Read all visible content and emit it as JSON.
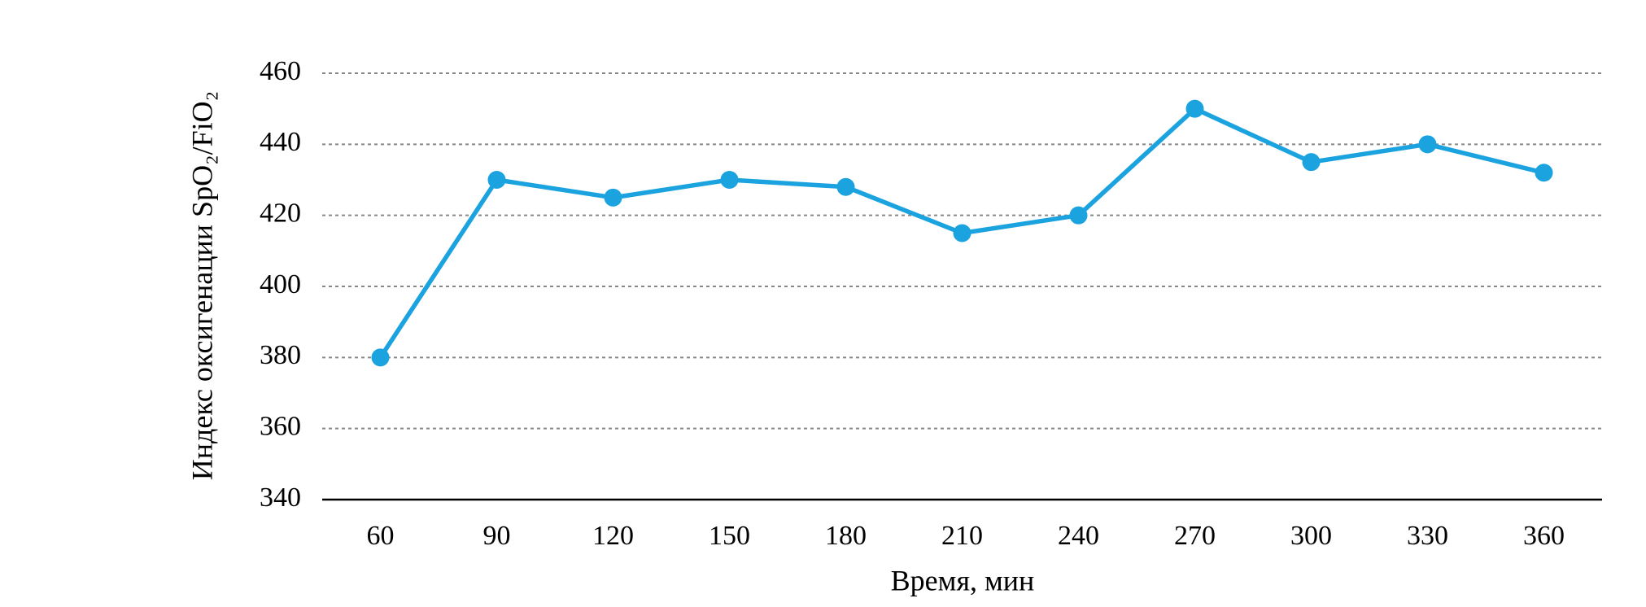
{
  "chart_data": {
    "type": "line",
    "x_label": "Время, мин",
    "y_label": "Индекс оксигенации SpO₂/FiO₂",
    "categories": [
      "60",
      "90",
      "120",
      "150",
      "180",
      "210",
      "240",
      "270",
      "300",
      "330",
      "360"
    ],
    "values": [
      380,
      430,
      425,
      430,
      428,
      415,
      420,
      450,
      435,
      440,
      432
    ],
    "color": "#1ba3e0",
    "ylim": [
      340,
      460
    ],
    "yticks": [
      340,
      360,
      380,
      400,
      420,
      440,
      460
    ],
    "grid": true
  }
}
